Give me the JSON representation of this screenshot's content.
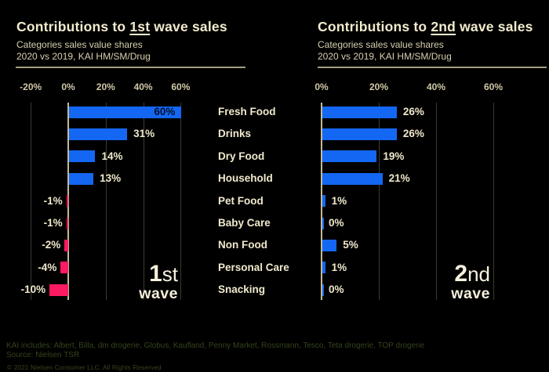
{
  "colors": {
    "background": "#000000",
    "positive_bar": "#1467f2",
    "negative_bar": "#fc1a62",
    "title_text": "#f2ebce",
    "subtitle_text": "#d6cfae",
    "tick_text": "#d0c8a6",
    "category_text": "#f0e9cd",
    "value_text": "#efe8cb",
    "inside_value_text": "#02102e",
    "gridline": "#3b3b2f",
    "zero_axis": "#c2b996",
    "header_rule": "#a59e7e",
    "footer_text": "#35431c"
  },
  "chart_data": [
    {
      "type": "bar",
      "orientation": "horizontal",
      "title": "Contributions to 1st wave sales",
      "title_parts": {
        "prefix": "Contributions to ",
        "underlined": "1st",
        "suffix": " wave sales"
      },
      "subtitle_line1": "Categories sales value shares",
      "subtitle_line2": "2020 vs 2019, KAI HM/SM/Drug",
      "categories": [
        "Fresh Food",
        "Drinks",
        "Dry Food",
        "Household",
        "Pet Food",
        "Baby Care",
        "Non Food",
        "Personal Care",
        "Snacking"
      ],
      "values": [
        60,
        31,
        14,
        13,
        -1,
        -1,
        -2,
        -4,
        -10
      ],
      "labels": [
        "60%",
        "31%",
        "14%",
        "13%",
        "-1%",
        "-1%",
        "-2%",
        "-4%",
        "-10%"
      ],
      "ticks": [
        {
          "value": -20,
          "label": "-20%"
        },
        {
          "value": 0,
          "label": "0%"
        },
        {
          "value": 20,
          "label": "20%"
        },
        {
          "value": 40,
          "label": "40%"
        },
        {
          "value": 60,
          "label": "60%"
        }
      ],
      "xlim": [
        -20,
        80
      ],
      "grid": true,
      "legend": false,
      "xlabel": "",
      "ylabel": "",
      "wave": {
        "number": "1",
        "suffix": "st",
        "word": "wave"
      }
    },
    {
      "type": "bar",
      "orientation": "horizontal",
      "title": "Contributions to 2nd wave sales",
      "title_parts": {
        "prefix": "Contributions to ",
        "underlined": "2nd",
        "suffix": " wave sales"
      },
      "subtitle_line1": "Categories sales value shares",
      "subtitle_line2": "2020 vs 2019, KAI HM/SM/Drug",
      "categories": [
        "Fresh Food",
        "Drinks",
        "Dry Food",
        "Household",
        "Pet Food",
        "Baby Care",
        "Non Food",
        "Personal Care",
        "Snacking"
      ],
      "values": [
        26,
        26,
        19,
        21,
        1,
        0,
        5,
        1,
        0
      ],
      "labels": [
        "26%",
        "26%",
        "19%",
        "21%",
        "1%",
        "0%",
        "5%",
        "1%",
        "0%"
      ],
      "ticks": [
        {
          "value": 0,
          "label": "0%"
        },
        {
          "value": 20,
          "label": "20%"
        },
        {
          "value": 40,
          "label": "40%"
        },
        {
          "value": 60,
          "label": "60%"
        }
      ],
      "xlim": [
        0,
        80
      ],
      "grid": true,
      "legend": false,
      "xlabel": "",
      "ylabel": "",
      "wave": {
        "number": "2",
        "suffix": "nd",
        "word": "wave"
      }
    }
  ],
  "footer": {
    "line1": "KAI includes: Albert, Billa, dm drogerie, Globus, Kaufland, Penny Market, Rossmann, Tesco, Teta drogerie, TOP drogerie",
    "line2": "Source: Nielsen TSR",
    "line3": "© 2021 Nielsen Consumer LLC. All Rights Reserved"
  }
}
